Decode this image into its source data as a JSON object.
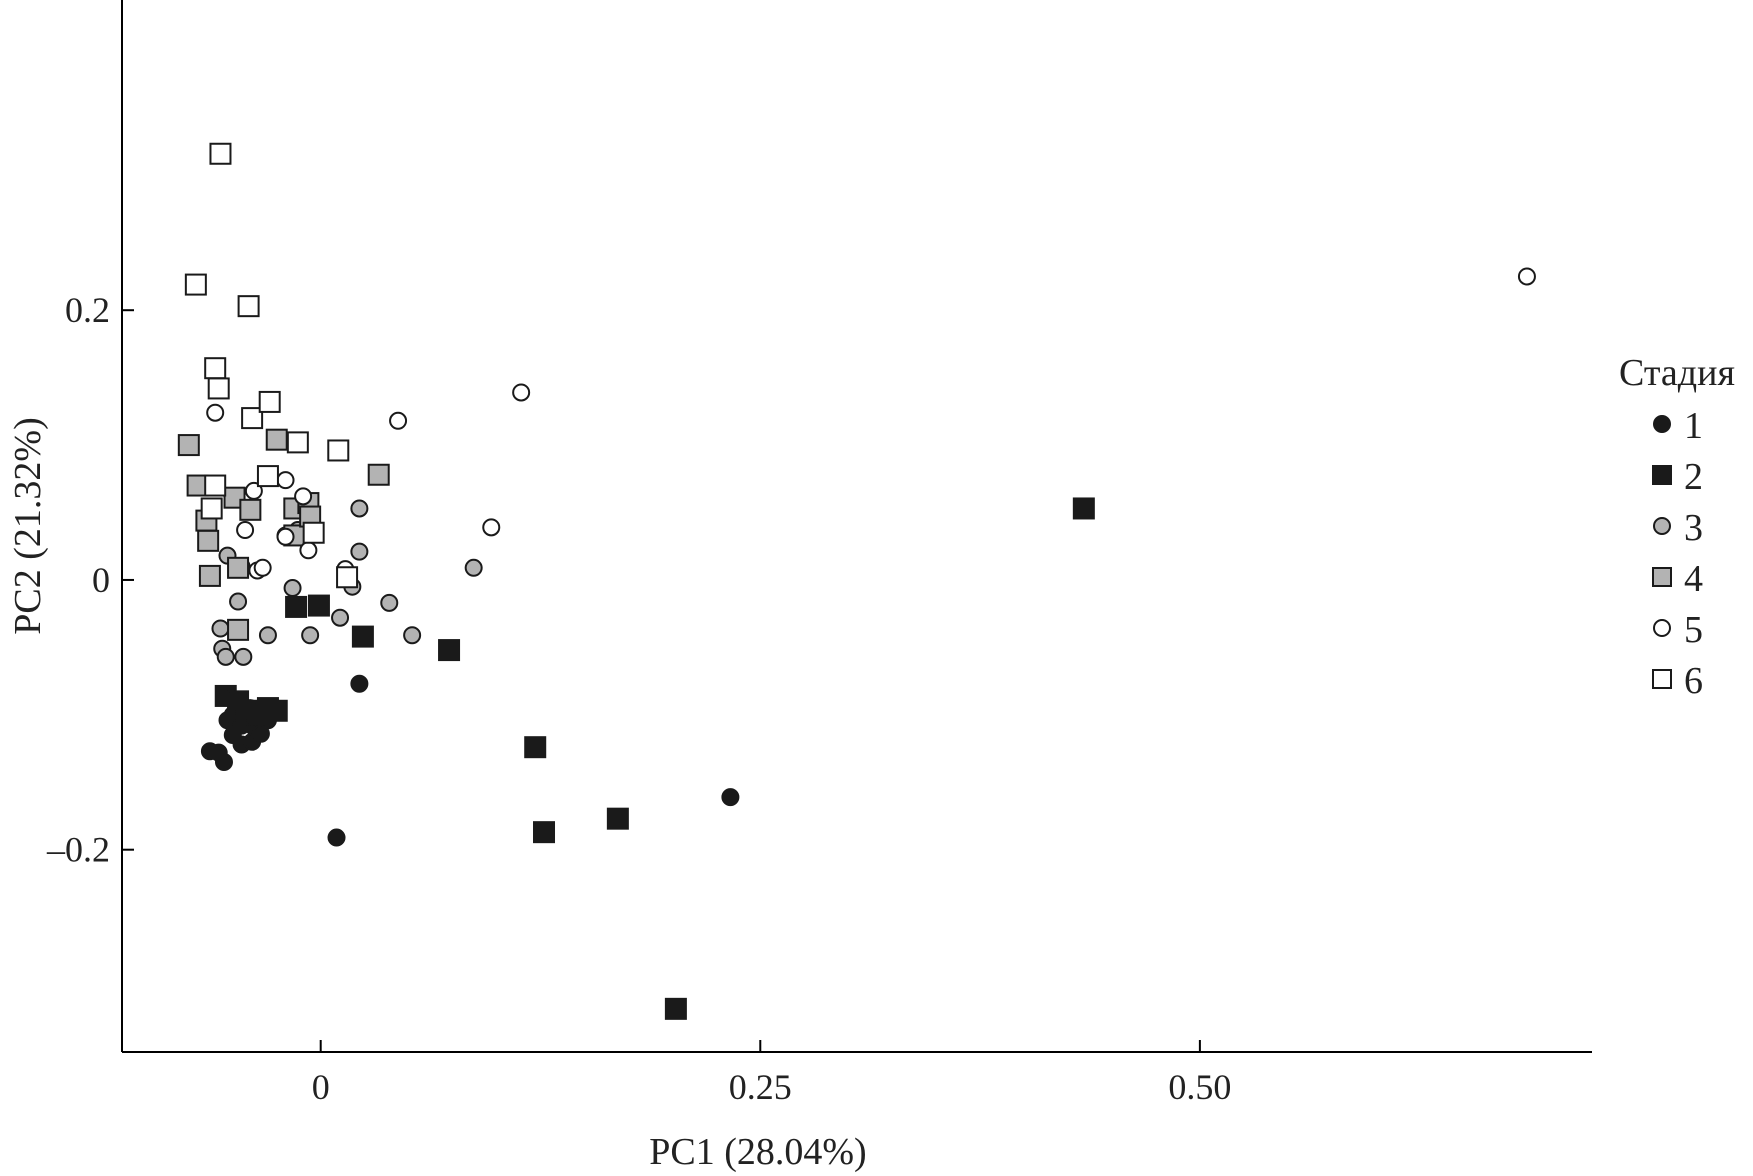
{
  "chart_data": {
    "type": "scatter",
    "xlabel": "PC1 (28.04%)",
    "ylabel": "PC2 (21.32%)",
    "xlim": [
      -0.113,
      0.723
    ],
    "ylim": [
      -0.35,
      0.43
    ],
    "xticks": [
      {
        "value": 0,
        "label": "0"
      },
      {
        "value": 0.25,
        "label": "0.25"
      },
      {
        "value": 0.5,
        "label": "0.50"
      }
    ],
    "yticks": [
      {
        "value": 0.2,
        "label": "0.2"
      },
      {
        "value": 0,
        "label": "0"
      },
      {
        "value": -0.2,
        "label": "–0.2"
      }
    ],
    "grid": false,
    "legend": {
      "title": "Стадия",
      "position": "right"
    },
    "series": [
      {
        "name": "1",
        "marker": "circle",
        "fill": "#1a1a1a",
        "points": [
          [
            0.022,
            -0.077
          ],
          [
            0.009,
            -0.191
          ],
          [
            0.233,
            -0.161
          ],
          [
            -0.063,
            -0.127
          ],
          [
            -0.055,
            -0.135
          ],
          [
            -0.058,
            -0.128
          ],
          [
            -0.053,
            -0.104
          ],
          [
            -0.05,
            -0.1
          ],
          [
            -0.045,
            -0.122
          ],
          [
            -0.048,
            -0.093
          ],
          [
            -0.042,
            -0.099
          ],
          [
            -0.039,
            -0.12
          ],
          [
            -0.038,
            -0.109
          ],
          [
            -0.036,
            -0.102
          ],
          [
            -0.034,
            -0.114
          ],
          [
            -0.032,
            -0.098
          ],
          [
            -0.03,
            -0.104
          ],
          [
            -0.045,
            -0.108
          ],
          [
            -0.04,
            -0.095
          ],
          [
            -0.05,
            -0.115
          ]
        ]
      },
      {
        "name": "2",
        "marker": "square",
        "fill": "#1a1a1a",
        "points": [
          [
            0.434,
            0.053
          ],
          [
            -0.014,
            -0.02
          ],
          [
            -0.001,
            -0.019
          ],
          [
            0.024,
            -0.042
          ],
          [
            0.073,
            -0.052
          ],
          [
            0.122,
            -0.124
          ],
          [
            0.127,
            -0.187
          ],
          [
            0.169,
            -0.177
          ],
          [
            0.202,
            -0.318
          ],
          [
            -0.054,
            -0.086
          ],
          [
            -0.047,
            -0.09
          ],
          [
            -0.042,
            -0.097
          ],
          [
            -0.036,
            -0.1
          ],
          [
            -0.03,
            -0.095
          ],
          [
            -0.025,
            -0.097
          ]
        ]
      },
      {
        "name": "3",
        "marker": "circle",
        "fill": "#b3b3b3",
        "points": [
          [
            0.022,
            0.053
          ],
          [
            0.022,
            0.021
          ],
          [
            -0.053,
            0.018
          ],
          [
            -0.047,
            -0.016
          ],
          [
            -0.057,
            -0.036
          ],
          [
            -0.056,
            -0.051
          ],
          [
            -0.054,
            -0.057
          ],
          [
            -0.044,
            -0.057
          ],
          [
            -0.03,
            -0.041
          ],
          [
            -0.016,
            -0.006
          ],
          [
            -0.006,
            -0.041
          ],
          [
            0.011,
            -0.028
          ],
          [
            0.018,
            -0.005
          ],
          [
            0.039,
            -0.017
          ],
          [
            0.052,
            -0.041
          ],
          [
            0.087,
            0.009
          ],
          [
            -0.013,
            0.037
          ],
          [
            -0.02,
            0.033
          ],
          [
            -0.045,
            0.01
          ]
        ]
      },
      {
        "name": "4",
        "marker": "square",
        "fill": "#b3b3b3",
        "points": [
          [
            -0.075,
            0.1
          ],
          [
            -0.07,
            0.07
          ],
          [
            -0.065,
            0.044
          ],
          [
            -0.064,
            0.029
          ],
          [
            -0.063,
            0.003
          ],
          [
            -0.049,
            0.061
          ],
          [
            -0.047,
            0.009
          ],
          [
            -0.04,
            0.052
          ],
          [
            -0.025,
            0.104
          ],
          [
            -0.015,
            0.053
          ],
          [
            -0.015,
            0.033
          ],
          [
            -0.007,
            0.057
          ],
          [
            -0.006,
            0.047
          ],
          [
            0.033,
            0.078
          ],
          [
            -0.047,
            -0.037
          ]
        ]
      },
      {
        "name": "5",
        "marker": "circle",
        "fill": "#ffffff",
        "points": [
          [
            0.686,
            0.225
          ],
          [
            0.114,
            0.139
          ],
          [
            0.044,
            0.118
          ],
          [
            -0.06,
            0.124
          ],
          [
            -0.038,
            0.066
          ],
          [
            -0.02,
            0.074
          ],
          [
            -0.01,
            0.062
          ],
          [
            -0.043,
            0.037
          ],
          [
            -0.036,
            0.007
          ],
          [
            -0.033,
            0.009
          ],
          [
            -0.02,
            0.032
          ],
          [
            -0.007,
            0.022
          ],
          [
            0.014,
            0.008
          ],
          [
            0.097,
            0.039
          ]
        ]
      },
      {
        "name": "6",
        "marker": "square",
        "fill": "#ffffff",
        "points": [
          [
            -0.057,
            0.316
          ],
          [
            -0.071,
            0.219
          ],
          [
            -0.041,
            0.203
          ],
          [
            -0.06,
            0.157
          ],
          [
            -0.058,
            0.142
          ],
          [
            -0.039,
            0.12
          ],
          [
            -0.029,
            0.132
          ],
          [
            -0.013,
            0.102
          ],
          [
            0.01,
            0.096
          ],
          [
            -0.03,
            0.077
          ],
          [
            -0.06,
            0.07
          ],
          [
            -0.062,
            0.053
          ],
          [
            -0.004,
            0.035
          ],
          [
            0.015,
            0.002
          ]
        ]
      }
    ]
  }
}
